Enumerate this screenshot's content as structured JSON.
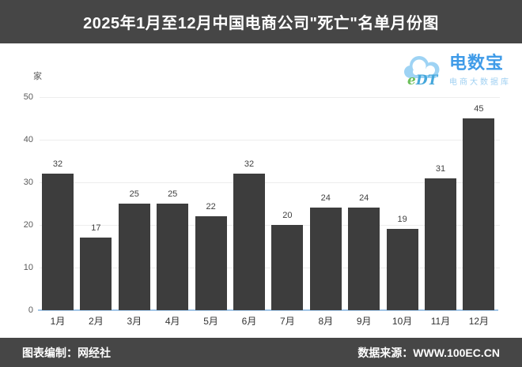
{
  "header": {
    "title": "2025年1月至12月中国电商公司\"死亡\"名单月份图"
  },
  "logo": {
    "mark_e": "e",
    "mark_dt": "DT",
    "name": "电数宝",
    "tagline": "电商大数据库"
  },
  "footer": {
    "left": "图表编制：网经社",
    "right": "数据来源：WWW.100EC.CN"
  },
  "chart_data": {
    "type": "bar",
    "title": "2025年1月至12月中国电商公司\"死亡\"名单月份图",
    "unit_label": "家",
    "categories": [
      "1月",
      "2月",
      "3月",
      "4月",
      "5月",
      "6月",
      "7月",
      "8月",
      "9月",
      "10月",
      "11月",
      "12月"
    ],
    "values": [
      32,
      17,
      25,
      25,
      22,
      32,
      20,
      24,
      24,
      19,
      31,
      45
    ],
    "xlabel": "",
    "ylabel": "家",
    "ylim": [
      0,
      50
    ],
    "yticks": [
      0,
      10,
      20,
      30,
      40,
      50
    ],
    "grid": "horizontal",
    "legend": "none",
    "value_labels": true,
    "bar_color": "#3d3d3d",
    "axis_line_color": "#a4c7e8",
    "band_color": "#464646"
  }
}
